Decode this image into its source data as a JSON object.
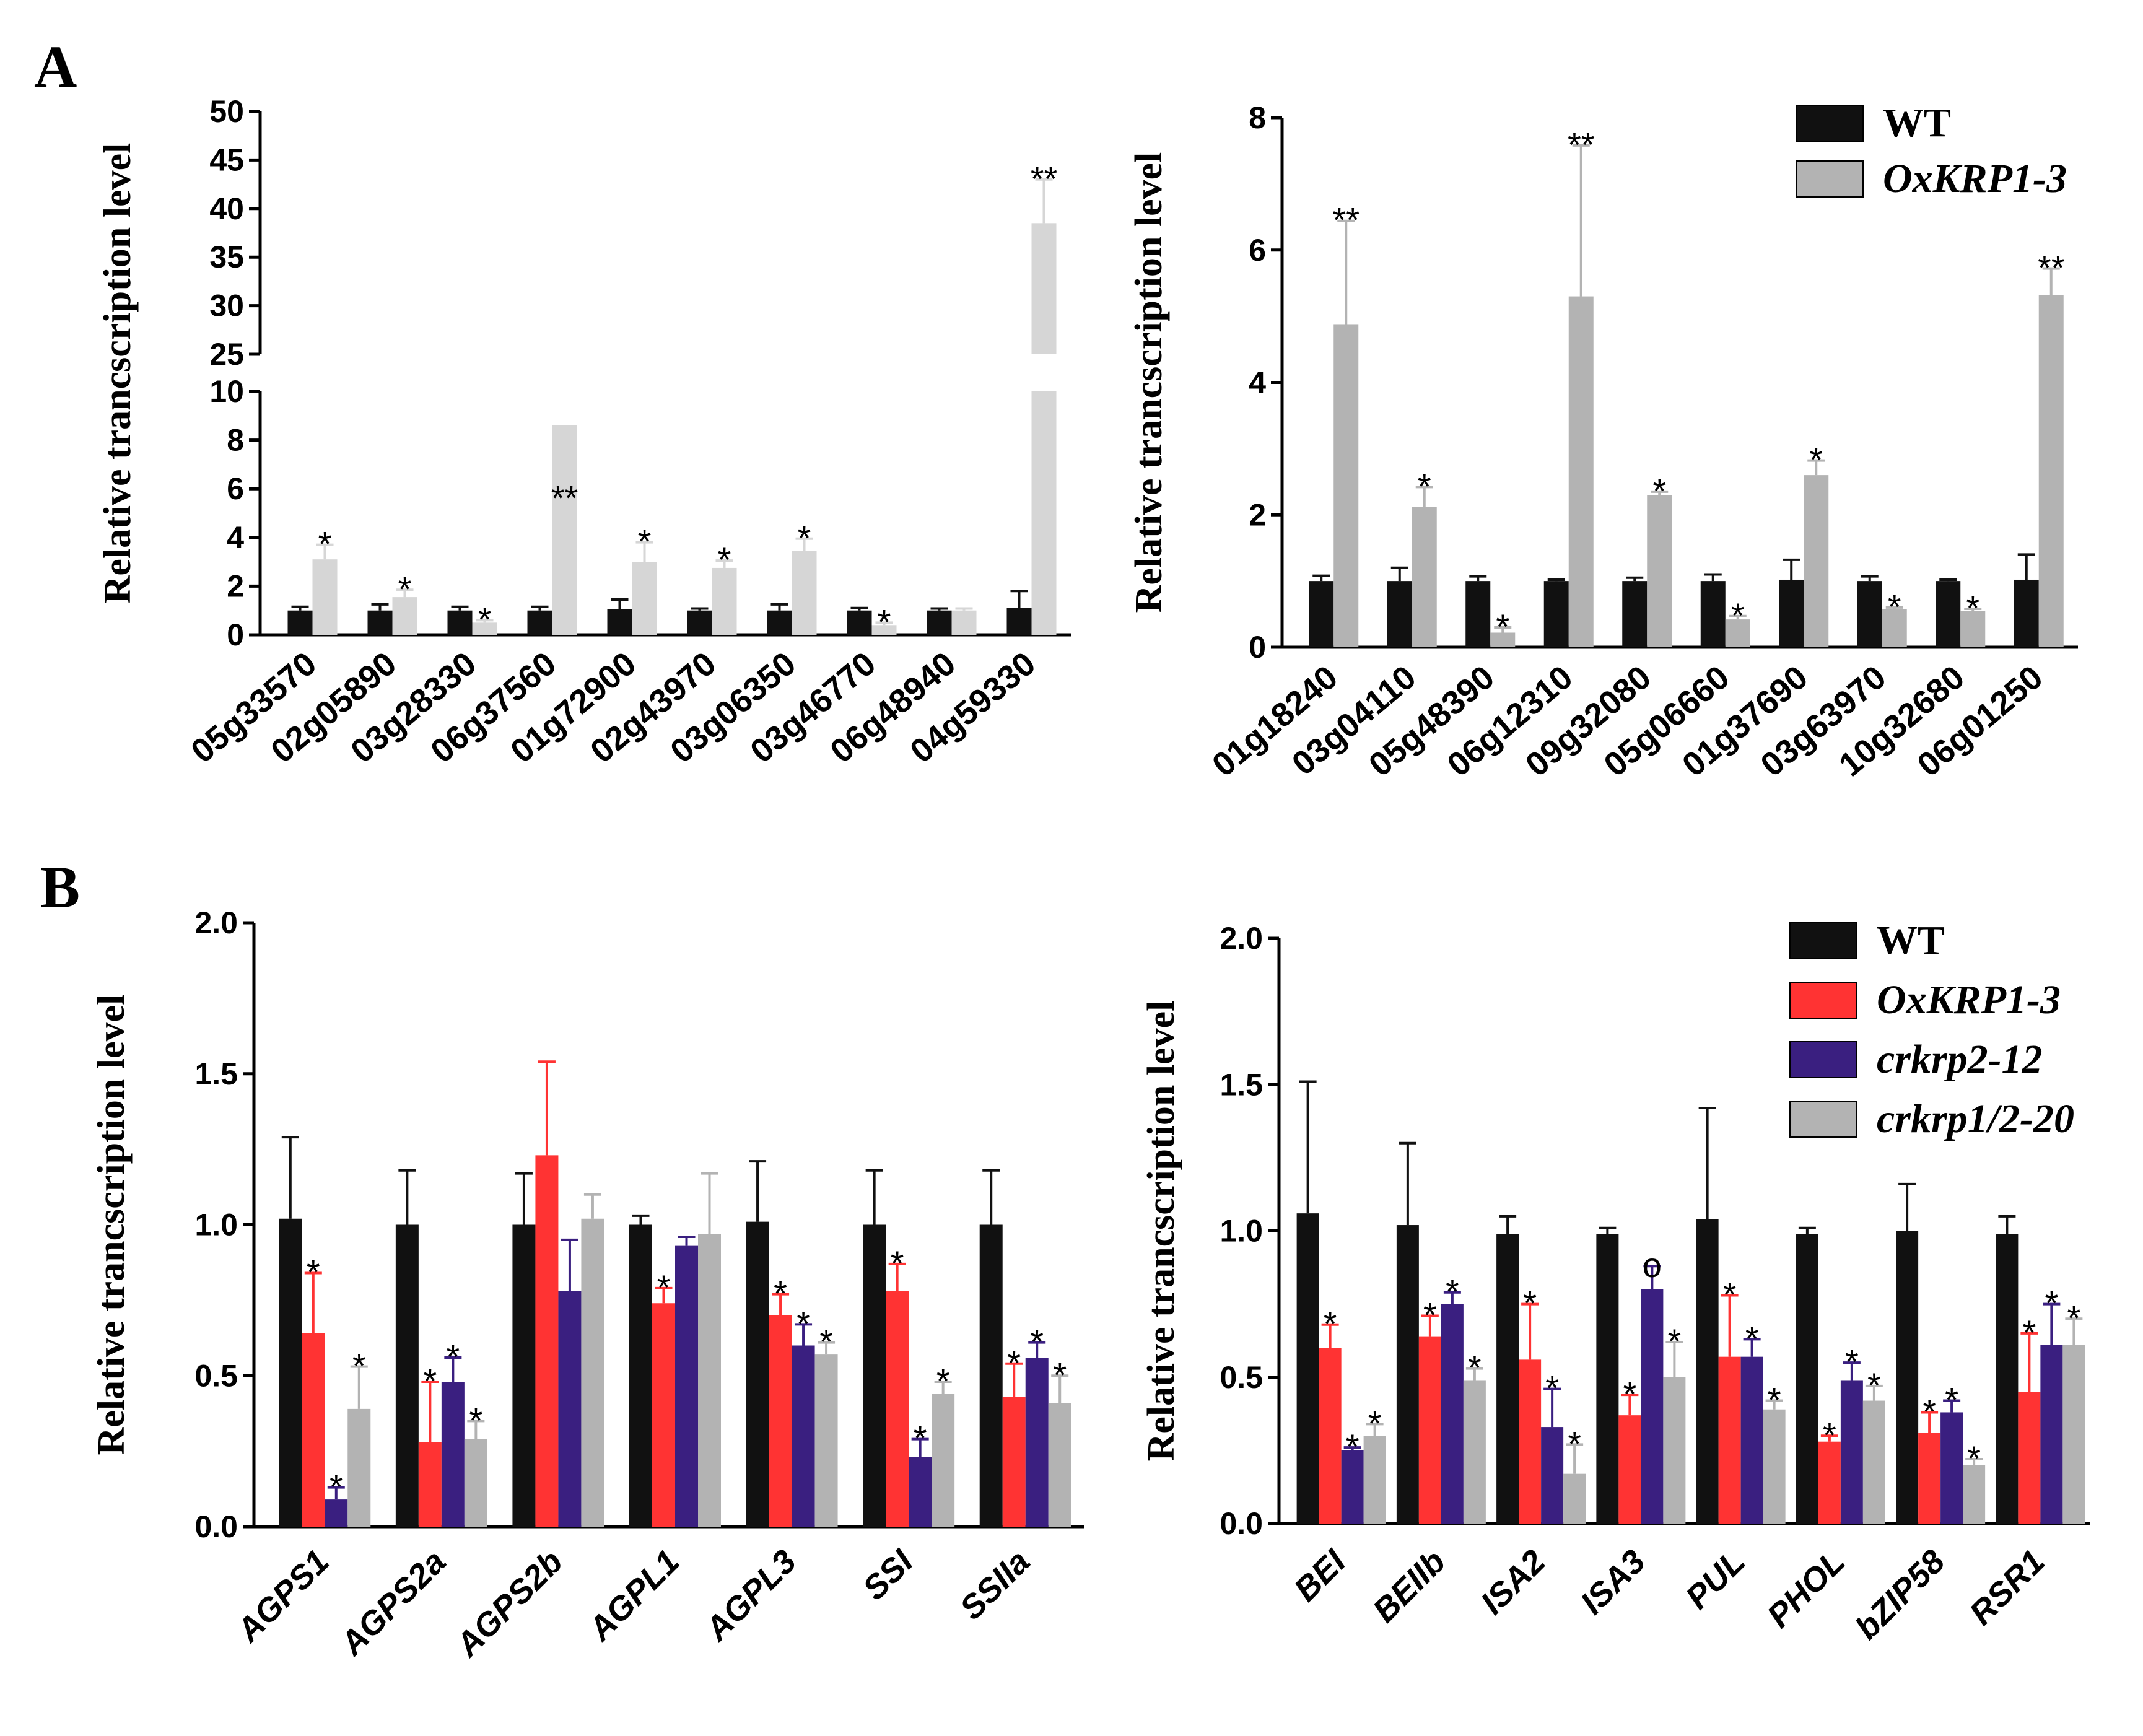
{
  "panel_labels": {
    "a": "A",
    "b": "B"
  },
  "chart_data": [
    {
      "id": "A-left",
      "type": "bar",
      "ylabel": "Relative trancscription level",
      "broken_axis": true,
      "ylim_lower": [
        0,
        10
      ],
      "ylim_upper": [
        25,
        50
      ],
      "yticks_lower": [
        "0",
        "2",
        "4",
        "6",
        "8",
        "10"
      ],
      "yticks_upper": [
        "25",
        "30",
        "35",
        "40",
        "45",
        "50"
      ],
      "categories": [
        "05g33570",
        "02g05890",
        "03g28330",
        "06g37560",
        "01g72900",
        "02g43970",
        "03g06350",
        "03g46770",
        "06g48940",
        "04g59330"
      ],
      "series": [
        {
          "name": "WT",
          "color": "#111111",
          "values": [
            1.0,
            1.0,
            1.0,
            1.0,
            1.05,
            1.0,
            1.0,
            1.0,
            1.0,
            1.1
          ],
          "errors": [
            0.15,
            0.25,
            0.15,
            0.15,
            0.4,
            0.08,
            0.25,
            0.1,
            0.08,
            0.7
          ]
        },
        {
          "name": "OxKRP1-3",
          "color": "#d6d6d6",
          "values": [
            3.1,
            1.55,
            0.5,
            8.6,
            3.0,
            2.75,
            3.45,
            0.4,
            1.0,
            38.5
          ],
          "errors": [
            0.6,
            0.3,
            0.1,
            1.5,
            0.8,
            0.3,
            0.5,
            0.1,
            0.08,
            4.5
          ],
          "marks": [
            "*",
            "*",
            "*",
            "**",
            "*",
            "*",
            "*",
            "*",
            "",
            "**"
          ]
        }
      ]
    },
    {
      "id": "A-right",
      "type": "bar",
      "ylabel": "Relative trancscription level",
      "ylim": [
        0,
        8
      ],
      "yticks": [
        "0",
        "2",
        "4",
        "6",
        "8"
      ],
      "categories": [
        "01g18240",
        "03g04110",
        "05g48390",
        "06g12310",
        "09g32080",
        "05g06660",
        "01g37690",
        "03g63970",
        "10g32680",
        "06g01250"
      ],
      "series": [
        {
          "name": "WT",
          "color": "#111111",
          "values": [
            1.0,
            1.0,
            1.0,
            1.0,
            1.0,
            1.0,
            1.02,
            1.0,
            1.0,
            1.02
          ],
          "errors": [
            0.08,
            0.2,
            0.07,
            0.02,
            0.05,
            0.1,
            0.3,
            0.07,
            0.02,
            0.38
          ]
        },
        {
          "name": "OxKRP1-3",
          "color": "#b3b3b3",
          "values": [
            4.88,
            2.12,
            0.22,
            5.3,
            2.3,
            0.42,
            2.6,
            0.58,
            0.55,
            5.32
          ],
          "errors": [
            1.56,
            0.3,
            0.08,
            2.28,
            0.05,
            0.05,
            0.22,
            0.02,
            0.03,
            0.4
          ],
          "marks": [
            "**",
            "*",
            "*",
            "**",
            "*",
            "*",
            "*",
            "*",
            "*",
            "**"
          ]
        }
      ],
      "legend": {
        "position": "top-right",
        "entries": [
          "WT",
          "OxKRP1-3"
        ]
      }
    },
    {
      "id": "B-left",
      "type": "bar",
      "ylabel": "Relative trancscription level",
      "ylim": [
        0,
        2
      ],
      "yticks": [
        "0.0",
        "0.5",
        "1.0",
        "1.5",
        "2.0"
      ],
      "categories": [
        "AGPS1",
        "AGPS2a",
        "AGPS2b",
        "AGPL1",
        "AGPL3",
        "SSI",
        "SSIIa"
      ],
      "series": [
        {
          "name": "WT",
          "color": "#111111",
          "values": [
            1.02,
            1.0,
            1.0,
            1.0,
            1.01,
            1.0,
            1.0
          ],
          "errors": [
            0.27,
            0.18,
            0.17,
            0.03,
            0.2,
            0.18,
            0.18
          ]
        },
        {
          "name": "OxKRP1-3",
          "color": "#ff3333",
          "values": [
            0.64,
            0.28,
            1.23,
            0.74,
            0.7,
            0.78,
            0.43
          ],
          "errors": [
            0.2,
            0.2,
            0.31,
            0.05,
            0.07,
            0.09,
            0.11
          ],
          "marks": [
            "*",
            "*",
            "",
            "*",
            "*",
            "*",
            "*"
          ]
        },
        {
          "name": "crkrp2-12",
          "color": "#3a1f80",
          "values": [
            0.09,
            0.48,
            0.78,
            0.93,
            0.6,
            0.23,
            0.56
          ],
          "errors": [
            0.04,
            0.08,
            0.17,
            0.03,
            0.07,
            0.06,
            0.05
          ],
          "marks": [
            "*",
            "*",
            "",
            "",
            "*",
            "*",
            "*"
          ]
        },
        {
          "name": "crkrp1/2-20",
          "color": "#b3b3b3",
          "values": [
            0.39,
            0.29,
            1.02,
            0.97,
            0.57,
            0.44,
            0.41
          ],
          "errors": [
            0.14,
            0.06,
            0.08,
            0.2,
            0.04,
            0.04,
            0.09
          ],
          "marks": [
            "*",
            "*",
            "",
            "",
            "*",
            "*",
            "*"
          ]
        }
      ]
    },
    {
      "id": "B-right",
      "type": "bar",
      "ylabel": "Relative trancscription level",
      "ylim": [
        0,
        2
      ],
      "yticks": [
        "0.0",
        "0.5",
        "1.0",
        "1.5",
        "2.0"
      ],
      "categories": [
        "BEI",
        "BEIIb",
        "ISA2",
        "ISA3",
        "PUL",
        "PHOL",
        "bZIP58",
        "RSR1"
      ],
      "series": [
        {
          "name": "WT",
          "color": "#111111",
          "values": [
            1.06,
            1.02,
            0.99,
            0.99,
            1.04,
            0.99,
            1.0,
            0.99
          ],
          "errors": [
            0.45,
            0.28,
            0.06,
            0.02,
            0.38,
            0.02,
            0.16,
            0.06
          ]
        },
        {
          "name": "OxKRP1-3",
          "color": "#ff3333",
          "values": [
            0.6,
            0.64,
            0.56,
            0.37,
            0.57,
            0.28,
            0.31,
            0.45
          ],
          "errors": [
            0.08,
            0.07,
            0.19,
            0.07,
            0.21,
            0.02,
            0.07,
            0.2
          ]
        },
        {
          "name": "crkrp2-12",
          "color": "#3a1f80",
          "values": [
            0.25,
            0.75,
            0.33,
            0.8,
            0.57,
            0.49,
            0.38,
            0.61
          ],
          "errors": [
            0.01,
            0.04,
            0.13,
            0.08,
            0.06,
            0.06,
            0.04,
            0.14
          ]
        },
        {
          "name": "crkrp1/2-20",
          "color": "#b3b3b3",
          "values": [
            0.3,
            0.49,
            0.17,
            0.5,
            0.39,
            0.42,
            0.2,
            0.61
          ],
          "errors": [
            0.04,
            0.04,
            0.1,
            0.12,
            0.03,
            0.05,
            0.02,
            0.09
          ]
        }
      ],
      "marks": [
        [
          "*",
          "*",
          "*",
          "*",
          "*",
          "*",
          "*",
          "*"
        ],
        [
          "*",
          "*",
          "*",
          "o",
          "*",
          "*",
          "*",
          "*"
        ],
        [
          "*",
          "*",
          "*",
          "*",
          "*",
          "*",
          "*",
          "*"
        ]
      ],
      "legend": {
        "position": "top-right",
        "entries": [
          "WT",
          "OxKRP1-3",
          "crkrp2-12",
          "crkrp1/2-20"
        ]
      }
    }
  ]
}
